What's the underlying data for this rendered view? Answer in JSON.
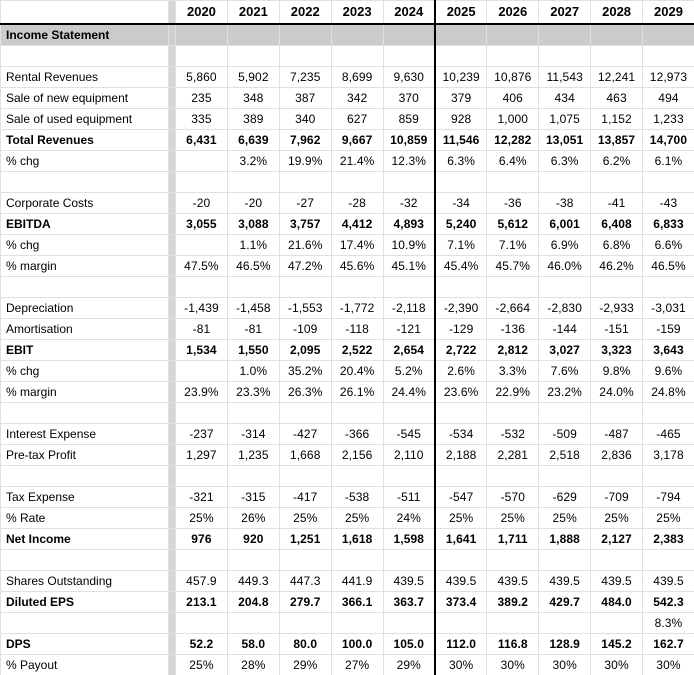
{
  "colors": {
    "section_fill": "#cbcbcb",
    "separator_fill": "#d6d6d6",
    "gridline": "#e0e0e0",
    "forecast_divider": "#000000",
    "text": "#000000"
  },
  "table": {
    "corner_label": "",
    "years": [
      "2020",
      "2021",
      "2022",
      "2023",
      "2024",
      "2025",
      "2026",
      "2027",
      "2028",
      "2029"
    ],
    "forecast_start_year": "2025",
    "rows": [
      {
        "label": "Income Statement",
        "style": "section",
        "values": [
          "",
          "",
          "",
          "",
          "",
          "",
          "",
          "",
          "",
          ""
        ]
      },
      {
        "label": "",
        "style": "blank",
        "values": [
          "",
          "",
          "",
          "",
          "",
          "",
          "",
          "",
          "",
          ""
        ]
      },
      {
        "label": "Rental Revenues",
        "style": "normal",
        "values": [
          "5,860",
          "5,902",
          "7,235",
          "8,699",
          "9,630",
          "10,239",
          "10,876",
          "11,543",
          "12,241",
          "12,973"
        ]
      },
      {
        "label": "Sale of new equipment",
        "style": "normal",
        "values": [
          "235",
          "348",
          "387",
          "342",
          "370",
          "379",
          "406",
          "434",
          "463",
          "494"
        ]
      },
      {
        "label": "Sale of used equipment",
        "style": "normal",
        "values": [
          "335",
          "389",
          "340",
          "627",
          "859",
          "928",
          "1,000",
          "1,075",
          "1,152",
          "1,233"
        ]
      },
      {
        "label": "Total Revenues",
        "style": "bold",
        "values": [
          "6,431",
          "6,639",
          "7,962",
          "9,667",
          "10,859",
          "11,546",
          "12,282",
          "13,051",
          "13,857",
          "14,700"
        ]
      },
      {
        "label": "% chg",
        "style": "normal",
        "values": [
          "",
          "3.2%",
          "19.9%",
          "21.4%",
          "12.3%",
          "6.3%",
          "6.4%",
          "6.3%",
          "6.2%",
          "6.1%"
        ]
      },
      {
        "label": "",
        "style": "blank",
        "values": [
          "",
          "",
          "",
          "",
          "",
          "",
          "",
          "",
          "",
          ""
        ]
      },
      {
        "label": "Corporate Costs",
        "style": "normal",
        "values": [
          "-20",
          "-20",
          "-27",
          "-28",
          "-32",
          "-34",
          "-36",
          "-38",
          "-41",
          "-43"
        ]
      },
      {
        "label": "EBITDA",
        "style": "bold",
        "values": [
          "3,055",
          "3,088",
          "3,757",
          "4,412",
          "4,893",
          "5,240",
          "5,612",
          "6,001",
          "6,408",
          "6,833"
        ]
      },
      {
        "label": "% chg",
        "style": "normal",
        "values": [
          "",
          "1.1%",
          "21.6%",
          "17.4%",
          "10.9%",
          "7.1%",
          "7.1%",
          "6.9%",
          "6.8%",
          "6.6%"
        ]
      },
      {
        "label": "% margin",
        "style": "normal",
        "values": [
          "47.5%",
          "46.5%",
          "47.2%",
          "45.6%",
          "45.1%",
          "45.4%",
          "45.7%",
          "46.0%",
          "46.2%",
          "46.5%"
        ]
      },
      {
        "label": "",
        "style": "blank",
        "values": [
          "",
          "",
          "",
          "",
          "",
          "",
          "",
          "",
          "",
          ""
        ]
      },
      {
        "label": "Depreciation",
        "style": "normal",
        "values": [
          "-1,439",
          "-1,458",
          "-1,553",
          "-1,772",
          "-2,118",
          "-2,390",
          "-2,664",
          "-2,830",
          "-2,933",
          "-3,031"
        ]
      },
      {
        "label": "Amortisation",
        "style": "normal",
        "values": [
          "-81",
          "-81",
          "-109",
          "-118",
          "-121",
          "-129",
          "-136",
          "-144",
          "-151",
          "-159"
        ]
      },
      {
        "label": "EBIT",
        "style": "bold",
        "values": [
          "1,534",
          "1,550",
          "2,095",
          "2,522",
          "2,654",
          "2,722",
          "2,812",
          "3,027",
          "3,323",
          "3,643"
        ]
      },
      {
        "label": "% chg",
        "style": "normal",
        "values": [
          "",
          "1.0%",
          "35.2%",
          "20.4%",
          "5.2%",
          "2.6%",
          "3.3%",
          "7.6%",
          "9.8%",
          "9.6%"
        ]
      },
      {
        "label": "% margin",
        "style": "normal",
        "values": [
          "23.9%",
          "23.3%",
          "26.3%",
          "26.1%",
          "24.4%",
          "23.6%",
          "22.9%",
          "23.2%",
          "24.0%",
          "24.8%"
        ]
      },
      {
        "label": "",
        "style": "blank",
        "values": [
          "",
          "",
          "",
          "",
          "",
          "",
          "",
          "",
          "",
          ""
        ]
      },
      {
        "label": "Interest Expense",
        "style": "normal",
        "values": [
          "-237",
          "-314",
          "-427",
          "-366",
          "-545",
          "-534",
          "-532",
          "-509",
          "-487",
          "-465"
        ]
      },
      {
        "label": "Pre-tax Profit",
        "style": "normal",
        "values": [
          "1,297",
          "1,235",
          "1,668",
          "2,156",
          "2,110",
          "2,188",
          "2,281",
          "2,518",
          "2,836",
          "3,178"
        ]
      },
      {
        "label": "",
        "style": "blank",
        "values": [
          "",
          "",
          "",
          "",
          "",
          "",
          "",
          "",
          "",
          ""
        ]
      },
      {
        "label": "Tax Expense",
        "style": "normal",
        "values": [
          "-321",
          "-315",
          "-417",
          "-538",
          "-511",
          "-547",
          "-570",
          "-629",
          "-709",
          "-794"
        ]
      },
      {
        "label": "% Rate",
        "style": "normal",
        "values": [
          "25%",
          "26%",
          "25%",
          "25%",
          "24%",
          "25%",
          "25%",
          "25%",
          "25%",
          "25%"
        ]
      },
      {
        "label": "Net Income",
        "style": "bold",
        "values": [
          "976",
          "920",
          "1,251",
          "1,618",
          "1,598",
          "1,641",
          "1,711",
          "1,888",
          "2,127",
          "2,383"
        ]
      },
      {
        "label": "",
        "style": "blank",
        "values": [
          "",
          "",
          "",
          "",
          "",
          "",
          "",
          "",
          "",
          ""
        ]
      },
      {
        "label": "Shares Outstanding",
        "style": "normal",
        "values": [
          "457.9",
          "449.3",
          "447.3",
          "441.9",
          "439.5",
          "439.5",
          "439.5",
          "439.5",
          "439.5",
          "439.5"
        ]
      },
      {
        "label": "Diluted EPS",
        "style": "bold",
        "values": [
          "213.1",
          "204.8",
          "279.7",
          "366.1",
          "363.7",
          "373.4",
          "389.2",
          "429.7",
          "484.0",
          "542.3"
        ]
      },
      {
        "label": "",
        "style": "normal",
        "values": [
          "",
          "",
          "",
          "",
          "",
          "",
          "",
          "",
          "",
          "8.3%"
        ]
      },
      {
        "label": "DPS",
        "style": "bold",
        "values": [
          "52.2",
          "58.0",
          "80.0",
          "100.0",
          "105.0",
          "112.0",
          "116.8",
          "128.9",
          "145.2",
          "162.7"
        ]
      },
      {
        "label": "% Payout",
        "style": "normal",
        "values": [
          "25%",
          "28%",
          "29%",
          "27%",
          "29%",
          "30%",
          "30%",
          "30%",
          "30%",
          "30%"
        ]
      }
    ]
  }
}
